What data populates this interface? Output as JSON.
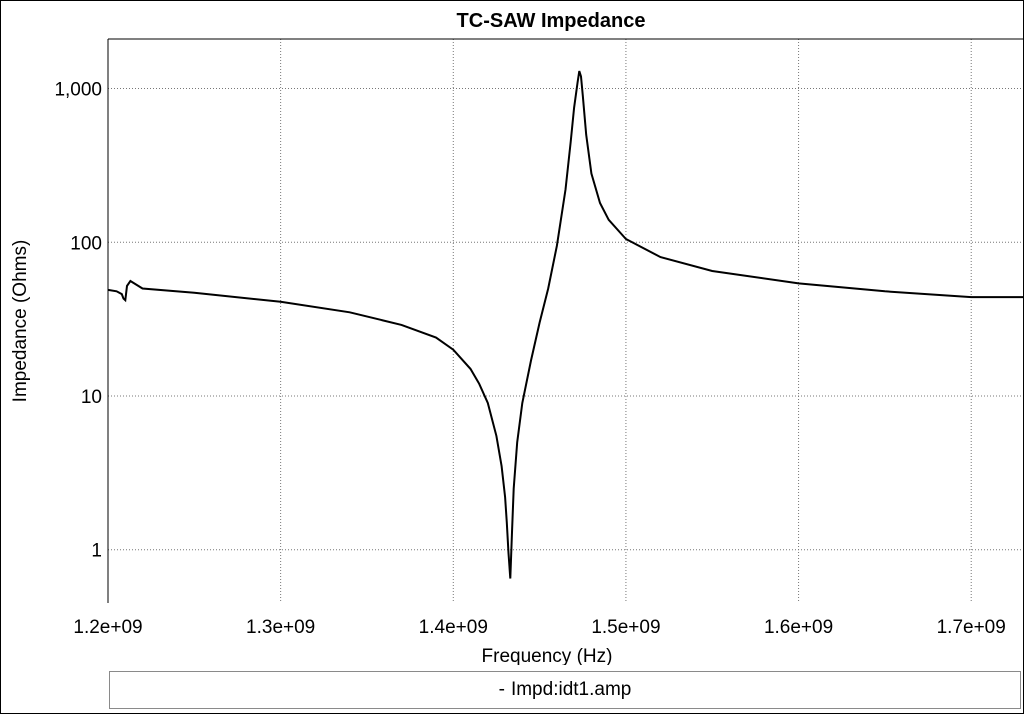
{
  "chart_data": {
    "type": "line",
    "title": "TC-SAW Impedance",
    "xlabel": "Frequency (Hz)",
    "ylabel": "Impedance (Ohms)",
    "xscale": "linear",
    "yscale": "log",
    "xlim": [
      1200000000.0,
      1730000000.0
    ],
    "ylim": [
      0.45,
      2100
    ],
    "grid": true,
    "legend_placement": "bottom",
    "x_ticks": [
      1200000000.0,
      1300000000.0,
      1400000000.0,
      1500000000.0,
      1600000000.0,
      1700000000.0
    ],
    "x_tick_labels": [
      "1.2e+09",
      "1.3e+09",
      "1.4e+09",
      "1.5e+09",
      "1.6e+09",
      "1.7e+09"
    ],
    "y_ticks": [
      1,
      10,
      100,
      1000
    ],
    "y_tick_labels": [
      "1",
      "10",
      "100",
      "1,000"
    ],
    "series": [
      {
        "name": "Impd:idt1.amp",
        "color": "#000000",
        "x": [
          1200000000.0,
          1205000000.0,
          1208000000.0,
          1209000000.0,
          1210000000.0,
          1211000000.0,
          1213000000.0,
          1220000000.0,
          1250000000.0,
          1300000000.0,
          1340000000.0,
          1370000000.0,
          1390000000.0,
          1400000000.0,
          1410000000.0,
          1415000000.0,
          1420000000.0,
          1425000000.0,
          1428000000.0,
          1430000000.0,
          1431000000.0,
          1432000000.0,
          1433000000.0,
          1434000000.0,
          1435000000.0,
          1437000000.0,
          1440000000.0,
          1445000000.0,
          1450000000.0,
          1455000000.0,
          1460000000.0,
          1465000000.0,
          1468000000.0,
          1470000000.0,
          1472000000.0,
          1473000000.0,
          1474000000.0,
          1475000000.0,
          1477000000.0,
          1480000000.0,
          1485000000.0,
          1490000000.0,
          1500000000.0,
          1520000000.0,
          1550000000.0,
          1600000000.0,
          1650000000.0,
          1700000000.0,
          1730000000.0
        ],
        "y": [
          49,
          48,
          46,
          43,
          42,
          52,
          56,
          50,
          47,
          41,
          35,
          29,
          24,
          20,
          15,
          12,
          9,
          5.5,
          3.5,
          2.2,
          1.5,
          0.95,
          0.65,
          1.3,
          2.5,
          5,
          9,
          17,
          30,
          50,
          95,
          220,
          450,
          750,
          1100,
          1300,
          1200,
          900,
          500,
          280,
          180,
          140,
          105,
          80,
          65,
          54,
          48,
          44,
          44
        ]
      }
    ]
  }
}
